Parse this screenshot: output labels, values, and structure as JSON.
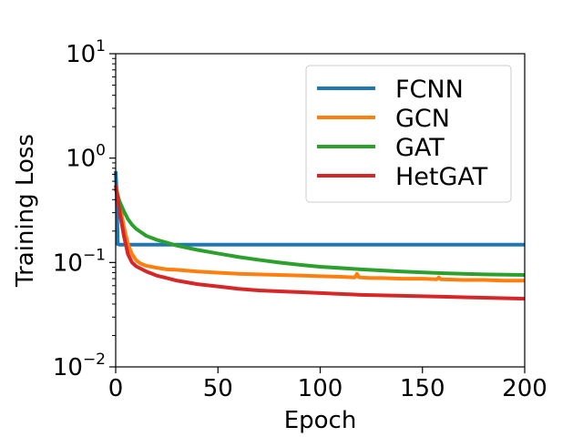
{
  "chart_data": {
    "type": "line",
    "title": "",
    "xlabel": "Epoch",
    "ylabel": "Training Loss",
    "xlim": [
      0,
      200
    ],
    "ylim": [
      0.01,
      10
    ],
    "yscale": "log",
    "grid": false,
    "legend_position": "top-right",
    "x_ticks": [
      {
        "value": 0,
        "label": "0"
      },
      {
        "value": 50,
        "label": "50"
      },
      {
        "value": 100,
        "label": "100"
      },
      {
        "value": 150,
        "label": "150"
      },
      {
        "value": 200,
        "label": "200"
      }
    ],
    "y_ticks": [
      {
        "value": 0.01,
        "base": "10",
        "exp": "−2"
      },
      {
        "value": 0.1,
        "base": "10",
        "exp": "−1"
      },
      {
        "value": 1,
        "base": "10",
        "exp": "0"
      },
      {
        "value": 10,
        "base": "10",
        "exp": "1"
      }
    ],
    "series": [
      {
        "name": "FCNN",
        "color": "#1f77b4",
        "x": [
          0,
          0.5,
          1,
          2,
          5,
          10,
          50,
          100,
          150,
          200
        ],
        "y": [
          0.75,
          0.45,
          0.15,
          0.148,
          0.148,
          0.148,
          0.148,
          0.148,
          0.148,
          0.148
        ]
      },
      {
        "name": "GCN",
        "color": "#ff7f0e",
        "x": [
          0,
          2,
          4,
          6,
          8,
          10,
          12,
          15,
          20,
          25,
          30,
          40,
          50,
          60,
          70,
          80,
          90,
          100,
          110,
          117,
          118,
          119,
          125,
          130,
          140,
          150,
          157,
          158,
          159,
          170,
          180,
          190,
          200
        ],
        "y": [
          0.55,
          0.36,
          0.22,
          0.15,
          0.12,
          0.105,
          0.098,
          0.093,
          0.089,
          0.086,
          0.085,
          0.082,
          0.08,
          0.078,
          0.077,
          0.076,
          0.075,
          0.074,
          0.073,
          0.072,
          0.078,
          0.072,
          0.071,
          0.071,
          0.07,
          0.07,
          0.069,
          0.072,
          0.069,
          0.068,
          0.068,
          0.067,
          0.067
        ]
      },
      {
        "name": "GAT",
        "color": "#2ca02c",
        "x": [
          0,
          2,
          4,
          6,
          8,
          10,
          15,
          20,
          25,
          30,
          40,
          50,
          60,
          70,
          80,
          90,
          100,
          120,
          140,
          160,
          180,
          200
        ],
        "y": [
          0.5,
          0.38,
          0.31,
          0.26,
          0.23,
          0.21,
          0.18,
          0.165,
          0.155,
          0.145,
          0.132,
          0.122,
          0.113,
          0.106,
          0.1,
          0.095,
          0.091,
          0.086,
          0.082,
          0.079,
          0.077,
          0.076
        ]
      },
      {
        "name": "HetGAT",
        "color": "#d62728",
        "x": [
          0,
          2,
          4,
          6,
          8,
          10,
          15,
          20,
          25,
          30,
          40,
          50,
          60,
          70,
          80,
          90,
          100,
          120,
          140,
          160,
          180,
          200
        ],
        "y": [
          0.55,
          0.3,
          0.18,
          0.12,
          0.1,
          0.092,
          0.082,
          0.075,
          0.071,
          0.067,
          0.062,
          0.059,
          0.056,
          0.054,
          0.053,
          0.052,
          0.051,
          0.049,
          0.048,
          0.047,
          0.046,
          0.045
        ]
      }
    ]
  }
}
